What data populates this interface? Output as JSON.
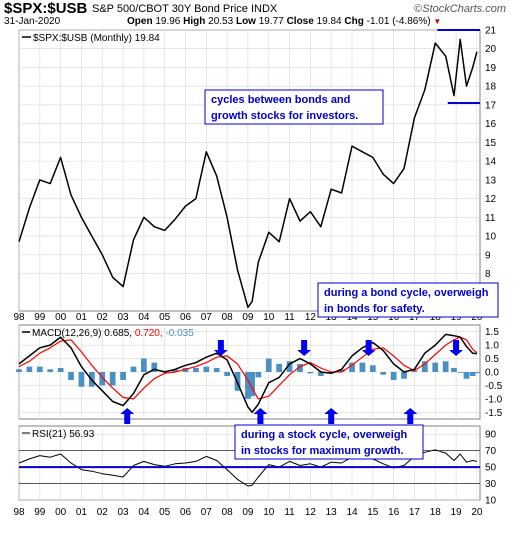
{
  "header": {
    "symbol": "$SPX:$USB",
    "description": "S&P 500/CBOT 30Y Bond Price INDX",
    "date": "31-Jan-2020",
    "open_label": "Open",
    "open": "19.96",
    "high_label": "High",
    "high": "20.53",
    "low_label": "Low",
    "low": "19.77",
    "close_label": "Close",
    "close": "19.84",
    "chg_label": "Chg",
    "chg": "-1.01 (-4.86%)",
    "brand": "StockCharts.com"
  },
  "colors": {
    "price": "#000000",
    "macd_line": "#000000",
    "signal_line": "#ff0000",
    "histogram": "#4a90c2",
    "annotation_text": "#0000cc",
    "annotation_border": "#0000cc",
    "arrows": "#0000ee",
    "guide_lines": "#0000cc",
    "rsi_line": "#000000",
    "grid": "#d8d8d8",
    "change_down": "#cc0000"
  },
  "chart_data": [
    {
      "type": "line",
      "panel": "price",
      "legend": "$SPX:$USB (Monthly) 19.84",
      "x": [
        1998.0,
        1998.5,
        1999.0,
        1999.5,
        2000.0,
        2000.5,
        2001.0,
        2001.5,
        2002.0,
        2002.5,
        2003.0,
        2003.5,
        2004.0,
        2004.5,
        2005.0,
        2005.5,
        2006.0,
        2006.5,
        2007.0,
        2007.5,
        2008.0,
        2008.5,
        2009.0,
        2009.2,
        2009.5,
        2010.0,
        2010.5,
        2011.0,
        2011.5,
        2012.0,
        2012.5,
        2013.0,
        2013.5,
        2014.0,
        2014.5,
        2015.0,
        2015.5,
        2016.0,
        2016.5,
        2017.0,
        2017.5,
        2018.0,
        2018.5,
        2018.9,
        2019.2,
        2019.5,
        2019.8,
        2020.0
      ],
      "y": [
        9.7,
        11.5,
        13.0,
        12.8,
        14.2,
        12.2,
        11.0,
        10.0,
        9.0,
        7.8,
        7.3,
        9.8,
        11.0,
        10.5,
        10.3,
        10.9,
        11.6,
        12.0,
        14.5,
        13.2,
        11.0,
        8.2,
        6.2,
        6.5,
        8.6,
        10.2,
        9.7,
        12.0,
        10.8,
        11.3,
        10.5,
        12.5,
        12.3,
        14.8,
        14.5,
        14.2,
        13.3,
        12.8,
        13.6,
        16.3,
        17.8,
        20.3,
        19.6,
        17.5,
        20.5,
        18.0,
        19.0,
        19.84
      ],
      "ylim": [
        6,
        21
      ],
      "y_ticks": [
        "8",
        "9",
        "10",
        "11",
        "12",
        "13",
        "14",
        "15",
        "16",
        "17",
        "18",
        "19",
        "20",
        "21"
      ],
      "x_tick_labels": [
        "98",
        "99",
        "00",
        "01",
        "02",
        "03",
        "04",
        "05",
        "06",
        "07",
        "08",
        "09",
        "10",
        "11",
        "12",
        "13",
        "14",
        "15",
        "16",
        "17",
        "18",
        "19",
        "20"
      ],
      "guide_lines": [
        {
          "value": 21
        },
        {
          "value": 17.1
        }
      ],
      "annotations": [
        {
          "text": "cycles between bonds and growth stocks for investors."
        },
        {
          "text": "during a bond cycle, overweigh in bonds for safety."
        }
      ]
    },
    {
      "type": "line",
      "panel": "macd",
      "legend_name": "MACD(12,26,9)",
      "legend_values": [
        "0.685",
        "0.720",
        "-0.035"
      ],
      "x": [
        1998.0,
        1998.5,
        1999.0,
        1999.5,
        2000.0,
        2000.5,
        2001.0,
        2001.5,
        2002.0,
        2002.5,
        2003.0,
        2003.5,
        2004.0,
        2004.5,
        2005.0,
        2005.5,
        2006.0,
        2006.5,
        2007.0,
        2007.5,
        2008.0,
        2008.5,
        2009.0,
        2009.2,
        2009.5,
        2010.0,
        2010.5,
        2011.0,
        2011.5,
        2012.0,
        2012.5,
        2013.0,
        2013.5,
        2014.0,
        2014.5,
        2015.0,
        2015.5,
        2016.0,
        2016.5,
        2017.0,
        2017.5,
        2018.0,
        2018.5,
        2018.9,
        2019.2,
        2019.5,
        2019.8,
        2020.0
      ],
      "series": [
        {
          "name": "MACD",
          "values": [
            0.3,
            0.6,
            0.9,
            1.0,
            1.3,
            0.9,
            0.2,
            -0.3,
            -0.7,
            -1.1,
            -1.25,
            -0.8,
            -0.1,
            0.1,
            0.0,
            0.1,
            0.25,
            0.35,
            0.55,
            0.7,
            0.45,
            -0.4,
            -1.3,
            -1.5,
            -1.2,
            -0.4,
            -0.2,
            0.3,
            0.5,
            0.3,
            0.0,
            -0.05,
            0.1,
            0.6,
            0.9,
            1.1,
            0.8,
            0.3,
            0.0,
            0.1,
            0.7,
            1.0,
            1.4,
            1.35,
            1.3,
            0.95,
            0.7,
            0.685
          ]
        },
        {
          "name": "Signal",
          "values": [
            0.2,
            0.4,
            0.7,
            0.9,
            1.15,
            1.2,
            0.75,
            0.25,
            -0.2,
            -0.6,
            -0.95,
            -1.0,
            -0.6,
            -0.25,
            -0.05,
            0.0,
            0.1,
            0.2,
            0.35,
            0.55,
            0.6,
            0.3,
            -0.3,
            -0.6,
            -1.0,
            -0.9,
            -0.5,
            -0.1,
            0.2,
            0.35,
            0.15,
            0.0,
            0.0,
            0.25,
            0.55,
            0.85,
            0.9,
            0.6,
            0.25,
            0.05,
            0.3,
            0.65,
            1.0,
            1.2,
            1.3,
            1.2,
            0.85,
            0.72
          ]
        }
      ],
      "histogram": [
        0.1,
        0.2,
        0.2,
        0.1,
        0.15,
        -0.3,
        -0.55,
        -0.55,
        -0.5,
        -0.5,
        -0.3,
        0.2,
        0.5,
        0.35,
        0.05,
        0.1,
        0.15,
        0.15,
        0.2,
        0.15,
        -0.15,
        -0.7,
        -1.0,
        -0.9,
        -0.2,
        0.5,
        0.3,
        0.4,
        0.3,
        -0.05,
        -0.15,
        -0.05,
        0.1,
        0.35,
        0.35,
        0.25,
        -0.1,
        -0.3,
        -0.25,
        0.05,
        0.4,
        0.35,
        0.4,
        0.15,
        0.0,
        -0.25,
        -0.15,
        -0.035
      ],
      "ylim": [
        -1.75,
        1.75
      ],
      "y_ticks": [
        "1.5",
        "1.0",
        "0.5",
        "0.0",
        "-0.5",
        "-1.0",
        "-1.5"
      ],
      "arrows": [
        {
          "x": 2003.2,
          "direction": "up"
        },
        {
          "x": 2007.7,
          "direction": "down"
        },
        {
          "x": 2009.6,
          "direction": "up"
        },
        {
          "x": 2011.7,
          "direction": "down"
        },
        {
          "x": 2013.0,
          "direction": "up"
        },
        {
          "x": 2014.8,
          "direction": "down"
        },
        {
          "x": 2016.8,
          "direction": "up"
        },
        {
          "x": 2019.0,
          "direction": "down"
        }
      ],
      "annotation": {
        "text": "during a stock cycle, overweigh in stocks for maximum growth."
      }
    },
    {
      "type": "line",
      "panel": "rsi",
      "legend_name": "RSI(21)",
      "legend_value": "56.93",
      "x": [
        1998.0,
        1998.5,
        1999.0,
        1999.5,
        2000.0,
        2000.5,
        2001.0,
        2001.5,
        2002.0,
        2002.5,
        2003.0,
        2003.5,
        2004.0,
        2004.5,
        2005.0,
        2005.5,
        2006.0,
        2006.5,
        2007.0,
        2007.5,
        2008.0,
        2008.5,
        2009.0,
        2009.2,
        2009.5,
        2010.0,
        2010.5,
        2011.0,
        2011.5,
        2012.0,
        2012.5,
        2013.0,
        2013.5,
        2014.0,
        2014.5,
        2015.0,
        2015.5,
        2016.0,
        2016.5,
        2017.0,
        2017.5,
        2018.0,
        2018.5,
        2018.9,
        2019.2,
        2019.5,
        2019.8,
        2020.0
      ],
      "y": [
        55,
        60,
        64,
        62,
        66,
        55,
        47,
        45,
        42,
        40,
        38,
        52,
        57,
        53,
        51,
        54,
        55,
        57,
        63,
        58,
        47,
        35,
        27,
        28,
        38,
        53,
        50,
        57,
        52,
        54,
        50,
        56,
        55,
        62,
        62,
        60,
        54,
        49,
        52,
        63,
        68,
        71,
        67,
        58,
        66,
        56,
        58,
        56.93
      ],
      "ylim": [
        10,
        100
      ],
      "y_ticks": [
        "90",
        "70",
        "50",
        "30",
        "10"
      ],
      "guide_lines": [
        {
          "value": 70
        },
        {
          "value": 50
        },
        {
          "value": 30
        }
      ]
    }
  ]
}
